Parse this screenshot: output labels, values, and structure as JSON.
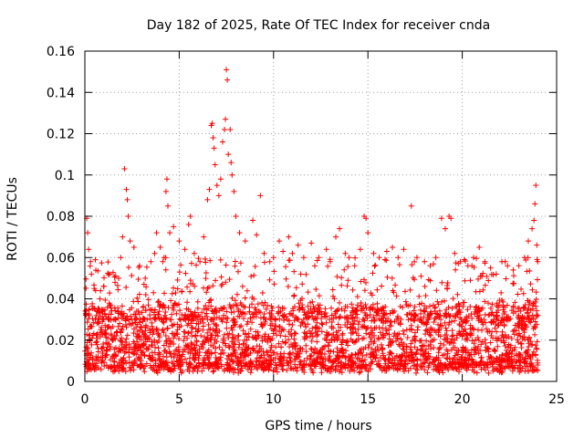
{
  "chart_data": {
    "type": "scatter",
    "title": "Day 182 of 2025, Rate Of TEC Index for receiver cnda",
    "xlabel": "GPS time / hours",
    "ylabel": "ROTI / TECUs",
    "xlim": [
      0,
      25
    ],
    "ylim": [
      0,
      0.16
    ],
    "x_ticks": [
      0,
      5,
      10,
      15,
      20,
      25
    ],
    "y_ticks": [
      0,
      0.02,
      0.04,
      0.06,
      0.08,
      0.1,
      0.12,
      0.14,
      0.16
    ],
    "x_tick_labels": [
      "0",
      "5",
      "10",
      "15",
      "20",
      "25"
    ],
    "y_tick_labels": [
      "0",
      "0.02",
      "0.04",
      "0.06",
      "0.08",
      "0.1",
      "0.12",
      "0.14",
      "0.16"
    ],
    "grid": true,
    "marker": "plus",
    "marker_color": "#ff0000",
    "series": [
      {
        "name": "ROTI",
        "points": [
          [
            0.1,
            0.079
          ],
          [
            0.15,
            0.072
          ],
          [
            0.2,
            0.064
          ],
          [
            0.3,
            0.058
          ],
          [
            0.35,
            0.052
          ],
          [
            0.5,
            0.045
          ],
          [
            0.8,
            0.04
          ],
          [
            1.0,
            0.046
          ],
          [
            1.3,
            0.052
          ],
          [
            1.6,
            0.048
          ],
          [
            1.9,
            0.06
          ],
          [
            2.0,
            0.07
          ],
          [
            2.1,
            0.103
          ],
          [
            2.2,
            0.093
          ],
          [
            2.25,
            0.088
          ],
          [
            2.3,
            0.08
          ],
          [
            2.4,
            0.068
          ],
          [
            2.6,
            0.065
          ],
          [
            2.9,
            0.056
          ],
          [
            3.2,
            0.05
          ],
          [
            3.5,
            0.058
          ],
          [
            3.7,
            0.062
          ],
          [
            3.8,
            0.072
          ],
          [
            4.0,
            0.065
          ],
          [
            4.2,
            0.06
          ],
          [
            4.3,
            0.092
          ],
          [
            4.35,
            0.098
          ],
          [
            4.4,
            0.085
          ],
          [
            4.5,
            0.072
          ],
          [
            4.7,
            0.075
          ],
          [
            5.0,
            0.068
          ],
          [
            5.3,
            0.064
          ],
          [
            5.5,
            0.076
          ],
          [
            5.6,
            0.08
          ],
          [
            5.8,
            0.062
          ],
          [
            6.1,
            0.058
          ],
          [
            6.3,
            0.07
          ],
          [
            6.5,
            0.088
          ],
          [
            6.6,
            0.093
          ],
          [
            6.7,
            0.124
          ],
          [
            6.75,
            0.125
          ],
          [
            6.8,
            0.118
          ],
          [
            6.85,
            0.113
          ],
          [
            6.9,
            0.105
          ],
          [
            7.0,
            0.095
          ],
          [
            7.1,
            0.09
          ],
          [
            7.2,
            0.098
          ],
          [
            7.3,
            0.116
          ],
          [
            7.4,
            0.122
          ],
          [
            7.45,
            0.127
          ],
          [
            7.5,
            0.151
          ],
          [
            7.55,
            0.146
          ],
          [
            7.6,
            0.11
          ],
          [
            7.7,
            0.122
          ],
          [
            7.75,
            0.106
          ],
          [
            7.8,
            0.1
          ],
          [
            7.9,
            0.092
          ],
          [
            8.0,
            0.08
          ],
          [
            8.2,
            0.072
          ],
          [
            8.5,
            0.068
          ],
          [
            8.9,
            0.078
          ],
          [
            9.1,
            0.071
          ],
          [
            9.3,
            0.09
          ],
          [
            9.5,
            0.062
          ],
          [
            9.8,
            0.058
          ],
          [
            10.0,
            0.06
          ],
          [
            10.3,
            0.068
          ],
          [
            10.5,
            0.063
          ],
          [
            10.8,
            0.07
          ],
          [
            11.0,
            0.062
          ],
          [
            11.3,
            0.066
          ],
          [
            11.6,
            0.06
          ],
          [
            12.0,
            0.067
          ],
          [
            12.4,
            0.06
          ],
          [
            12.8,
            0.064
          ],
          [
            13.0,
            0.058
          ],
          [
            13.3,
            0.07
          ],
          [
            13.5,
            0.074
          ],
          [
            13.8,
            0.062
          ],
          [
            14.0,
            0.06
          ],
          [
            14.3,
            0.056
          ],
          [
            14.6,
            0.064
          ],
          [
            14.8,
            0.08
          ],
          [
            14.9,
            0.079
          ],
          [
            15.0,
            0.072
          ],
          [
            15.3,
            0.062
          ],
          [
            15.6,
            0.06
          ],
          [
            16.0,
            0.063
          ],
          [
            16.3,
            0.065
          ],
          [
            16.6,
            0.06
          ],
          [
            16.9,
            0.064
          ],
          [
            17.3,
            0.085
          ],
          [
            17.6,
            0.06
          ],
          [
            18.0,
            0.058
          ],
          [
            18.3,
            0.056
          ],
          [
            18.6,
            0.06
          ],
          [
            18.9,
            0.079
          ],
          [
            19.1,
            0.074
          ],
          [
            19.3,
            0.08
          ],
          [
            19.4,
            0.079
          ],
          [
            19.6,
            0.062
          ],
          [
            19.9,
            0.058
          ],
          [
            20.3,
            0.056
          ],
          [
            20.6,
            0.06
          ],
          [
            20.9,
            0.065
          ],
          [
            21.2,
            0.058
          ],
          [
            21.5,
            0.055
          ],
          [
            21.8,
            0.052
          ],
          [
            22.1,
            0.058
          ],
          [
            22.4,
            0.056
          ],
          [
            22.7,
            0.054
          ],
          [
            23.0,
            0.056
          ],
          [
            23.3,
            0.06
          ],
          [
            23.5,
            0.068
          ],
          [
            23.7,
            0.074
          ],
          [
            23.8,
            0.078
          ],
          [
            23.85,
            0.086
          ],
          [
            23.9,
            0.095
          ],
          [
            23.95,
            0.066
          ],
          [
            24.0,
            0.058
          ]
        ]
      }
    ],
    "dense_band": {
      "description": "bulk of samples",
      "x_range": [
        0.0,
        24.0
      ],
      "y_typical": [
        0.004,
        0.035
      ],
      "count": 2600
    }
  }
}
